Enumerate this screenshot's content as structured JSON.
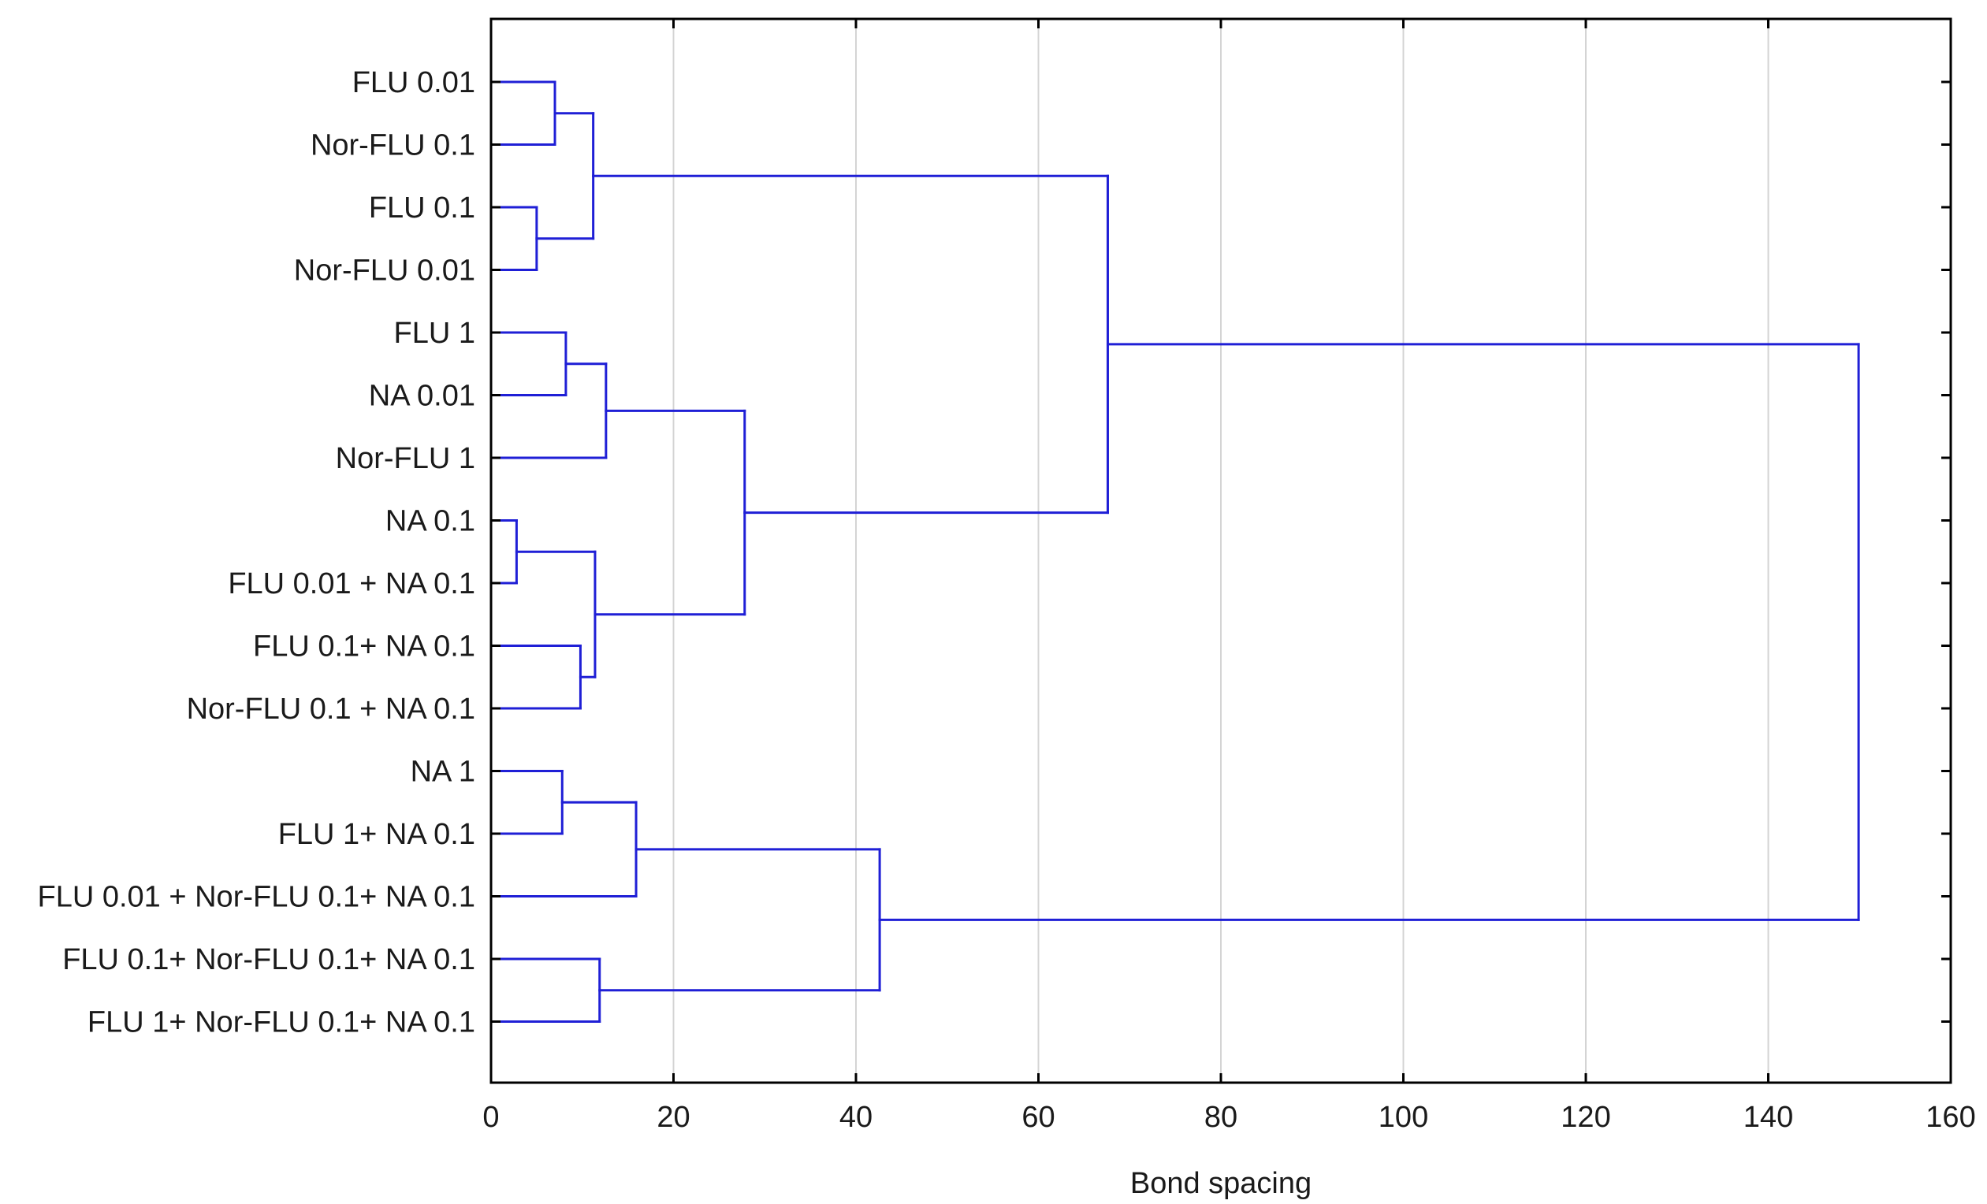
{
  "chart_data": {
    "type": "dendrogram",
    "title": "",
    "xlabel": "Bond spacing",
    "ylabel": "",
    "xlim": [
      0,
      160
    ],
    "xticks": [
      0,
      20,
      40,
      60,
      80,
      100,
      120,
      140,
      160
    ],
    "grid": true,
    "line_color": "#1f1fd6",
    "grid_color": "#d4d4d4",
    "leaves": [
      "FLU 0.01",
      "Nor-FLU 0.1",
      "FLU 0.1",
      "Nor-FLU 0.01",
      "FLU 1",
      "NA 0.01",
      "Nor-FLU 1",
      "NA 0.1",
      "FLU 0.01 + NA 0.1",
      "FLU 0.1+ NA 0.1",
      "Nor-FLU 0.1 + NA 0.1",
      "NA 1",
      "FLU 1+ NA 0.1",
      "FLU 0.01 + Nor-FLU 0.1+ NA 0.1",
      "FLU 0.1+ Nor-FLU 0.1+ NA 0.1",
      "FLU 1+ Nor-FLU 0.1+ NA 0.1"
    ],
    "merges": [
      {
        "id": "c1",
        "left": "L0",
        "right": "L1",
        "distance": 7.0
      },
      {
        "id": "c2",
        "left": "L2",
        "right": "L3",
        "distance": 5.0
      },
      {
        "id": "c3",
        "left": "c1",
        "right": "c2",
        "distance": 11.2
      },
      {
        "id": "c4",
        "left": "L4",
        "right": "L5",
        "distance": 8.2
      },
      {
        "id": "c5",
        "left": "c4",
        "right": "L6",
        "distance": 12.6
      },
      {
        "id": "c6",
        "left": "L7",
        "right": "L8",
        "distance": 2.8
      },
      {
        "id": "c7",
        "left": "L9",
        "right": "L10",
        "distance": 9.8
      },
      {
        "id": "c8",
        "left": "c6",
        "right": "c7",
        "distance": 11.4
      },
      {
        "id": "c9",
        "left": "c5",
        "right": "c8",
        "distance": 27.8
      },
      {
        "id": "c10",
        "left": "c3",
        "right": "c9",
        "distance": 67.6
      },
      {
        "id": "c11",
        "left": "L11",
        "right": "L12",
        "distance": 7.8
      },
      {
        "id": "c12",
        "left": "c11",
        "right": "L13",
        "distance": 15.9
      },
      {
        "id": "c13",
        "left": "L14",
        "right": "L15",
        "distance": 11.9
      },
      {
        "id": "c14",
        "left": "c12",
        "right": "c13",
        "distance": 42.6
      },
      {
        "id": "c15",
        "left": "c10",
        "right": "c14",
        "distance": 149.9
      }
    ]
  }
}
